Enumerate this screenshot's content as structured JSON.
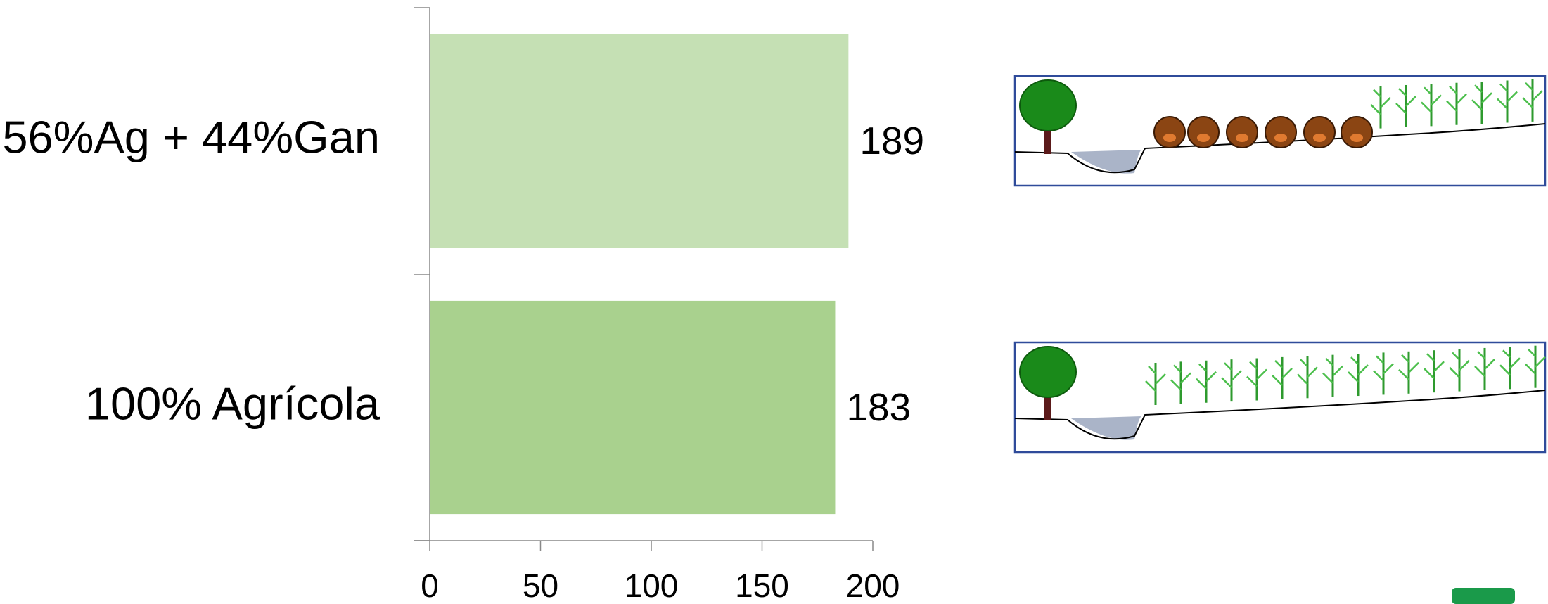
{
  "chart_data": {
    "type": "bar",
    "orientation": "horizontal",
    "categories": [
      "56%Ag + 44%Gan",
      "100% Agrícola"
    ],
    "values": [
      189,
      183
    ],
    "colors": [
      "#c5e0b4",
      "#a9d18e"
    ],
    "xlim": [
      0,
      200
    ],
    "xticks": [
      0,
      50,
      100,
      150,
      200
    ]
  }
}
